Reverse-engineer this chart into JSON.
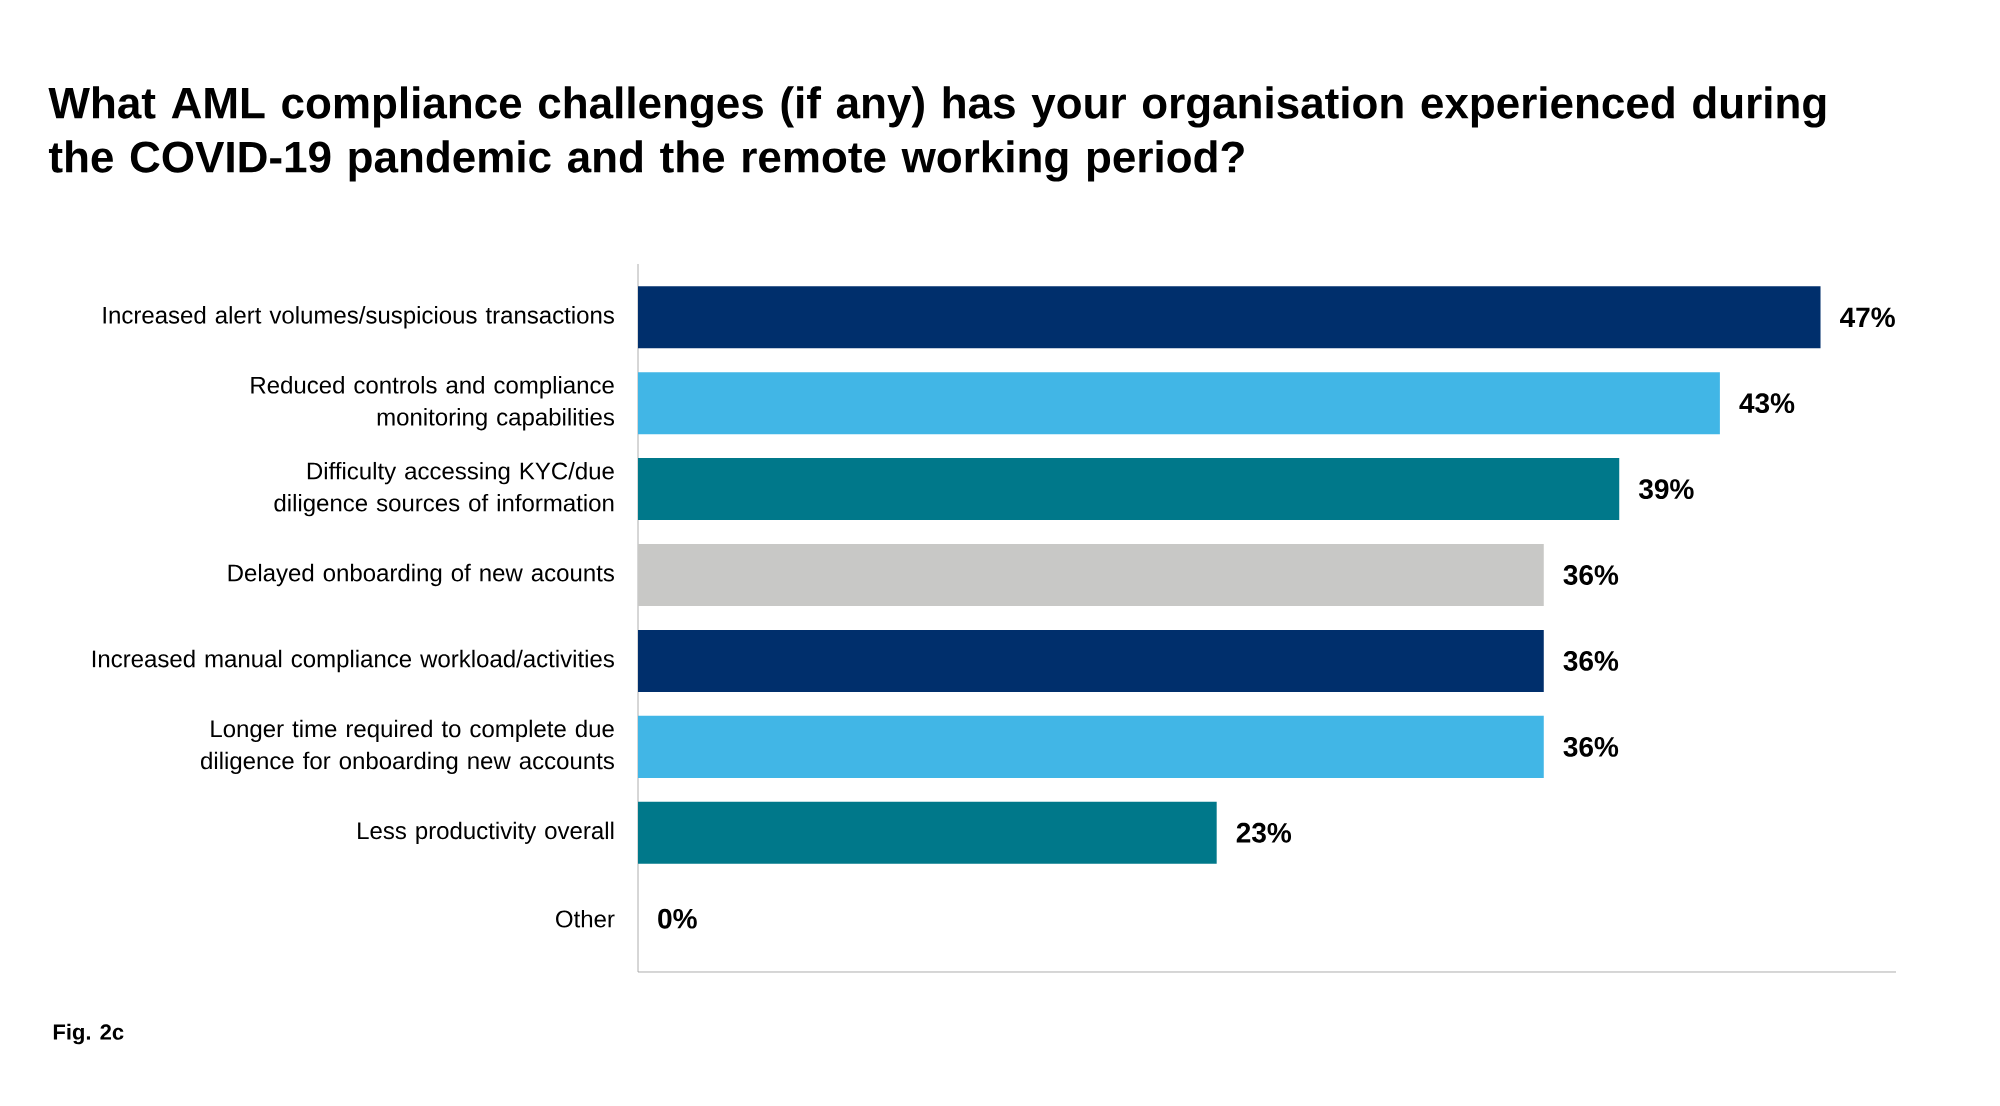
{
  "chart_data": {
    "type": "bar",
    "orientation": "horizontal",
    "title": "What AML compliance challenges (if any) has your organisation experienced during the COVID-19 pandemic and the remote working period?",
    "categories": [
      "Increased alert volumes/suspicious transactions",
      "Reduced controls and compliance monitoring capabilities",
      "Difficulty accessing KYC/due diligence sources of information",
      "Delayed onboarding of new acounts",
      "Increased manual compliance workload/activities",
      "Longer time required to complete due diligence for onboarding new accounts",
      "Less productivity overall",
      "Other"
    ],
    "values": [
      47,
      43,
      39,
      36,
      36,
      36,
      23,
      0
    ],
    "value_labels": [
      "47%",
      "43%",
      "39%",
      "36%",
      "36%",
      "36%",
      "23%",
      "0%"
    ],
    "colors": [
      "#002f6c",
      "#41b6e6",
      "#00788a",
      "#c8c8c6",
      "#002f6c",
      "#41b6e6",
      "#00788a",
      "#c8c8c6"
    ],
    "xlim": [
      0,
      50
    ],
    "annotations": [
      "Fig. 2c"
    ]
  }
}
